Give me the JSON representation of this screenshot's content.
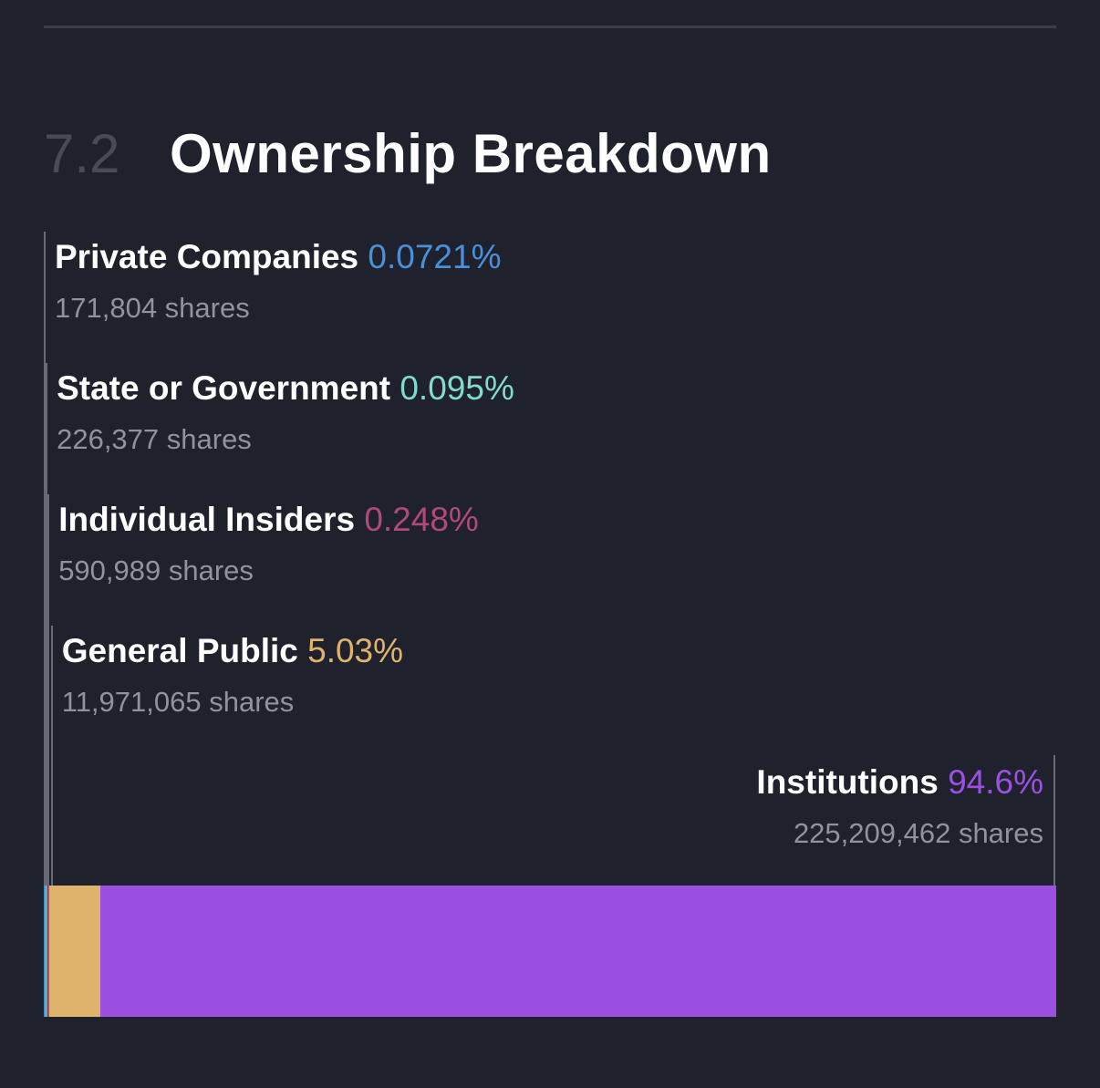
{
  "section": {
    "number": "7.2",
    "title": "Ownership Breakdown"
  },
  "chart_data": {
    "type": "bar",
    "orientation": "horizontal-stacked",
    "categories": [
      "Private Companies",
      "State or Government",
      "Individual Insiders",
      "General Public",
      "Institutions"
    ],
    "values": [
      0.0721,
      0.095,
      0.248,
      5.03,
      94.6
    ],
    "unit": "%",
    "series": [
      {
        "name": "Private Companies",
        "value": 0.0721,
        "pct_label": "0.0721%",
        "shares": "171,804 shares",
        "color": "#4a90d9"
      },
      {
        "name": "State or Government",
        "value": 0.095,
        "pct_label": "0.095%",
        "shares": "226,377 shares",
        "color": "#7fdccf"
      },
      {
        "name": "Individual Insiders",
        "value": 0.248,
        "pct_label": "0.248%",
        "shares": "590,989 shares",
        "color": "#b0497c"
      },
      {
        "name": "General Public",
        "value": 5.03,
        "pct_label": "5.03%",
        "shares": "11,971,065 shares",
        "color": "#e0b36c"
      },
      {
        "name": "Institutions",
        "value": 94.6,
        "pct_label": "94.6%",
        "shares": "225,209,462 shares",
        "color": "#9b50e2"
      }
    ]
  }
}
